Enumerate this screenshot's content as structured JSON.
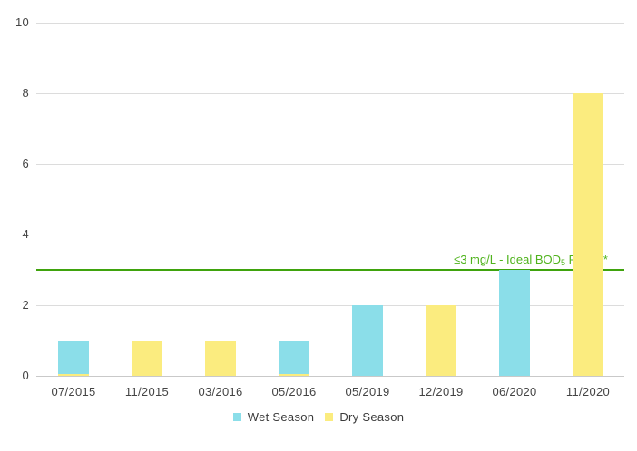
{
  "chart_data": {
    "type": "bar",
    "title": "",
    "xlabel": "",
    "ylabel": "",
    "categories": [
      "07/2015",
      "11/2015",
      "03/2016",
      "05/2016",
      "05/2019",
      "12/2019",
      "06/2020",
      "11/2020"
    ],
    "series": [
      {
        "name": "Wet Season",
        "color": "#8BDEE9"
      },
      {
        "name": "Dry Season",
        "color": "#FBEC7F"
      }
    ],
    "bars": [
      {
        "category": "07/2015",
        "series": "Wet Season",
        "value": 1,
        "base_sliver": true
      },
      {
        "category": "11/2015",
        "series": "Dry Season",
        "value": 1
      },
      {
        "category": "03/2016",
        "series": "Dry Season",
        "value": 1
      },
      {
        "category": "05/2016",
        "series": "Wet Season",
        "value": 1,
        "base_sliver": true
      },
      {
        "category": "05/2019",
        "series": "Wet Season",
        "value": 2
      },
      {
        "category": "12/2019",
        "series": "Dry Season",
        "value": 2
      },
      {
        "category": "06/2020",
        "series": "Wet Season",
        "value": 3
      },
      {
        "category": "11/2020",
        "series": "Dry Season",
        "value": 8
      }
    ],
    "ylim": [
      0,
      10
    ],
    "yticks": [
      0,
      2,
      4,
      6,
      8,
      10
    ],
    "grid": "horizontal",
    "legend_position": "bottom",
    "reference_line": {
      "value": 3,
      "color": "#3FA30D",
      "label": "≤3 mg/L - Ideal BOD₅ Range*",
      "label_parts": {
        "prefix": "≤3 mg/L - Ideal BOD",
        "subscript": "5",
        "suffix": " Range*"
      },
      "label_color": "#4FB31C"
    }
  },
  "colors": {
    "background": "#FFFFFF",
    "gridline": "#DCDCDC",
    "axis_line": "#C9C9C9",
    "tick_text": "#444444",
    "legend_text": "#3B3B3B"
  }
}
